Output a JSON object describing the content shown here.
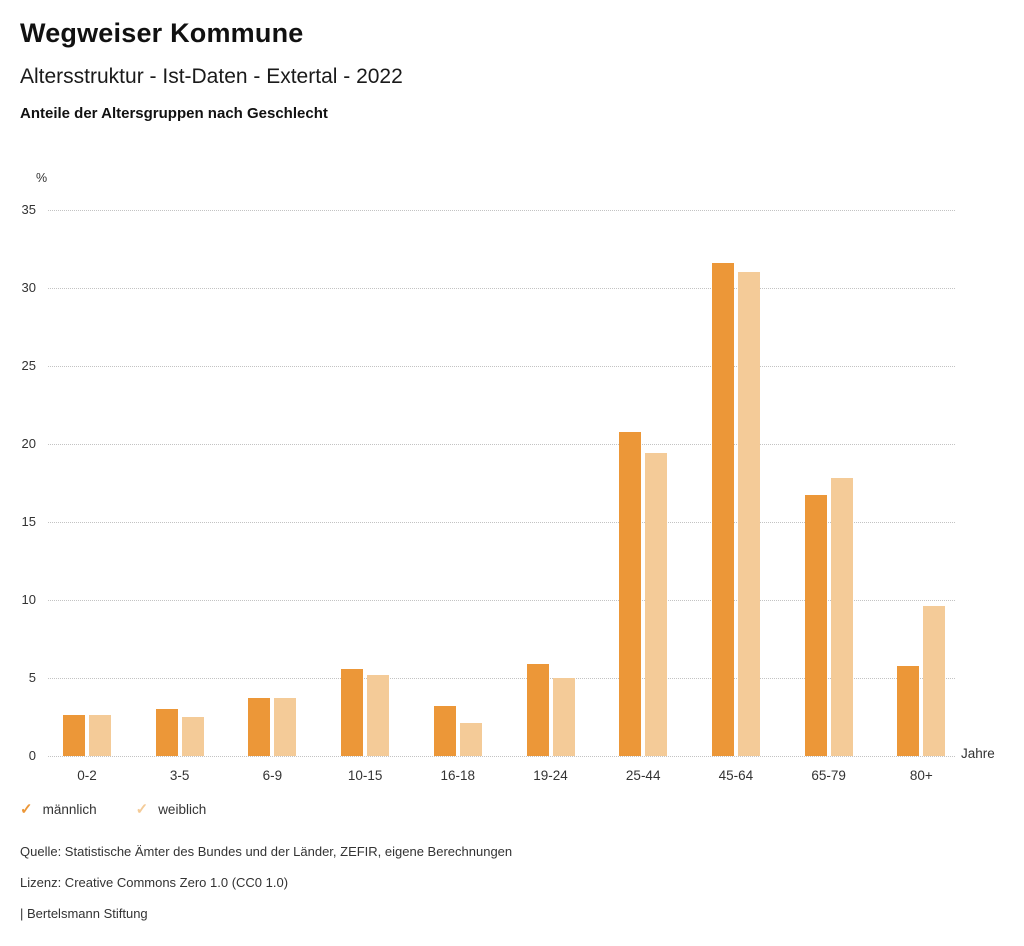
{
  "header": {
    "title": "Wegweiser Kommune",
    "subtitle": "Altersstruktur - Ist-Daten - Extertal - 2022",
    "caption": "Anteile der Altersgruppen nach Geschlecht"
  },
  "chart_data": {
    "type": "bar",
    "title": "Anteile der Altersgruppen nach Geschlecht",
    "categories": [
      "0-2",
      "3-5",
      "6-9",
      "10-15",
      "16-18",
      "19-24",
      "25-44",
      "45-64",
      "65-79",
      "80+"
    ],
    "series": [
      {
        "name": "männlich",
        "color": "#EC9738",
        "values": [
          2.6,
          3.0,
          3.7,
          5.6,
          3.2,
          5.9,
          20.8,
          31.6,
          16.7,
          5.8
        ]
      },
      {
        "name": "weiblich",
        "color": "#F4CB98",
        "values": [
          2.6,
          2.5,
          3.7,
          5.2,
          2.1,
          5.0,
          19.4,
          31.0,
          17.8,
          9.6
        ]
      }
    ],
    "ylabel": "%",
    "xlabel": "Jahre",
    "ylim": [
      0,
      35
    ],
    "ytick_step": 5,
    "yticks": [
      35,
      30,
      25,
      20,
      15,
      10,
      5,
      0
    ],
    "grid": "horizontal-dotted",
    "legend_position": "bottom-left"
  },
  "legend": {
    "check_glyph": "✓"
  },
  "footer": {
    "source": "Quelle: Statistische Ämter des Bundes und der Länder, ZEFIR, eigene Berechnungen",
    "license": "Lizenz: Creative Commons Zero 1.0 (CC0 1.0)",
    "brand": "| Bertelsmann Stiftung"
  }
}
